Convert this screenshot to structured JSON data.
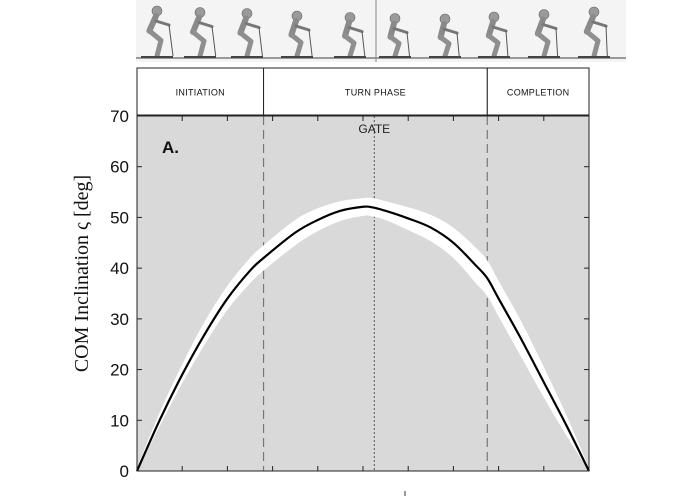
{
  "chart_data": {
    "type": "line",
    "panel_label": "A.",
    "ylabel": "COM Inclination ς [deg]",
    "xlabel": "",
    "ylim": [
      0,
      70
    ],
    "xlim": [
      0,
      100
    ],
    "yticks": [
      0,
      10,
      20,
      30,
      40,
      50,
      60,
      70
    ],
    "x_minor_ticks": 10,
    "grid": false,
    "phases": [
      {
        "label": "INITIATION",
        "start": 0,
        "end": 28
      },
      {
        "label": "TURN PHASE",
        "start": 28,
        "end": 77.5
      },
      {
        "label": "COMPLETION",
        "start": 77.5,
        "end": 100
      }
    ],
    "phase_boundaries": [
      28,
      77.5
    ],
    "gate": {
      "label": "GATE",
      "x": 52.5
    },
    "series": [
      {
        "name": "",
        "x": [
          0,
          5,
          10,
          15,
          20,
          25,
          28,
          35,
          40,
          45,
          50,
          52,
          55,
          60,
          65,
          70,
          75,
          77.5,
          80,
          85,
          90,
          95,
          100
        ],
        "values": [
          0,
          10,
          19,
          27,
          34,
          39.5,
          42,
          47,
          49.5,
          51.3,
          52.1,
          52,
          51.3,
          49.8,
          48,
          45,
          40.5,
          38,
          34,
          26,
          17.5,
          9,
          0
        ],
        "upper": [
          0.6,
          11.5,
          21,
          29.5,
          36.5,
          42,
          44.5,
          49.5,
          51.8,
          53.2,
          53.8,
          53.8,
          53.2,
          52,
          50.5,
          48,
          44,
          41.5,
          37.5,
          29.5,
          20.5,
          11,
          0.6
        ],
        "lower": [
          0,
          8.8,
          17.3,
          25,
          31.8,
          37,
          39.5,
          44.5,
          47.3,
          49.3,
          50.3,
          50.2,
          49.5,
          47.5,
          45.3,
          42,
          37,
          34.5,
          30.5,
          22.5,
          14.5,
          7,
          0
        ]
      }
    ]
  },
  "colors": {
    "plot_background": "#d9d9d9",
    "band": "#ffffff",
    "mean_line": "#000000",
    "boundary_line": "#777777"
  }
}
